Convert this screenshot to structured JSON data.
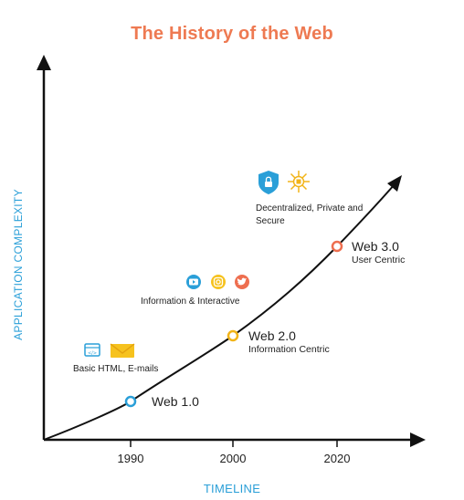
{
  "title": "The History of the Web",
  "axes": {
    "xlabel": "TIMELINE",
    "ylabel": "APPLICATION COMPLEXITY"
  },
  "ticks": [
    "1990",
    "2000",
    "2020"
  ],
  "milestones": [
    {
      "label": "Web 1.0",
      "subtitle": "",
      "color": "#2a9fd8"
    },
    {
      "label": "Web 2.0",
      "subtitle": "Information Centric",
      "color": "#f2b418"
    },
    {
      "label": "Web 3.0",
      "subtitle": "User Centric",
      "color": "#ee6e4f"
    }
  ],
  "features": [
    {
      "text": "Basic HTML, E-mails",
      "icons": [
        "html-icon",
        "email-icon"
      ]
    },
    {
      "text": "Information & Interactive",
      "icons": [
        "youtube-icon",
        "instagram-icon",
        "twitter-icon"
      ]
    },
    {
      "text": "Decentralized, Private and Secure",
      "icons": [
        "shield-lock-icon",
        "network-icon"
      ]
    }
  ],
  "colors": {
    "title": "#ee7a52",
    "axis_label": "#2a9fd8",
    "axis": "#111111"
  }
}
